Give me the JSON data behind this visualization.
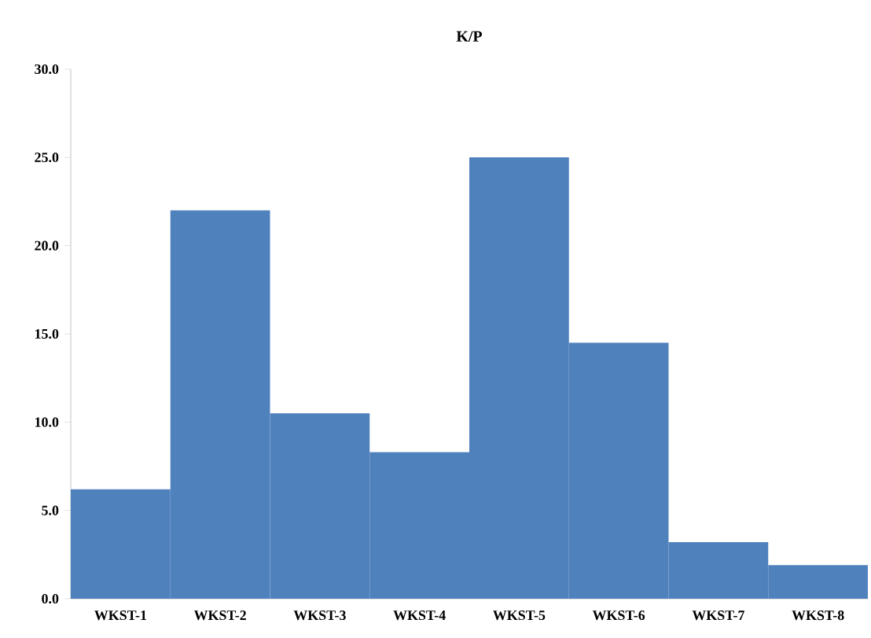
{
  "chart_data": {
    "type": "bar",
    "title": "K/P",
    "categories": [
      "WKST-1",
      "WKST-2",
      "WKST-3",
      "WKST-4",
      "WKST-5",
      "WKST-6",
      "WKST-7",
      "WKST-8"
    ],
    "values": [
      6.2,
      22.0,
      10.5,
      8.3,
      25.0,
      14.5,
      3.2,
      1.9
    ],
    "color": "#4f81bd",
    "ylim": [
      0,
      30
    ],
    "yticks": [
      {
        "value": 0,
        "label": "0.0"
      },
      {
        "value": 5,
        "label": "5.0"
      },
      {
        "value": 10,
        "label": "10.0"
      },
      {
        "value": 15,
        "label": "15.0"
      },
      {
        "value": 20,
        "label": "20.0"
      },
      {
        "value": 25,
        "label": "25.0"
      },
      {
        "value": 30,
        "label": "30.0"
      }
    ],
    "grid": false
  }
}
